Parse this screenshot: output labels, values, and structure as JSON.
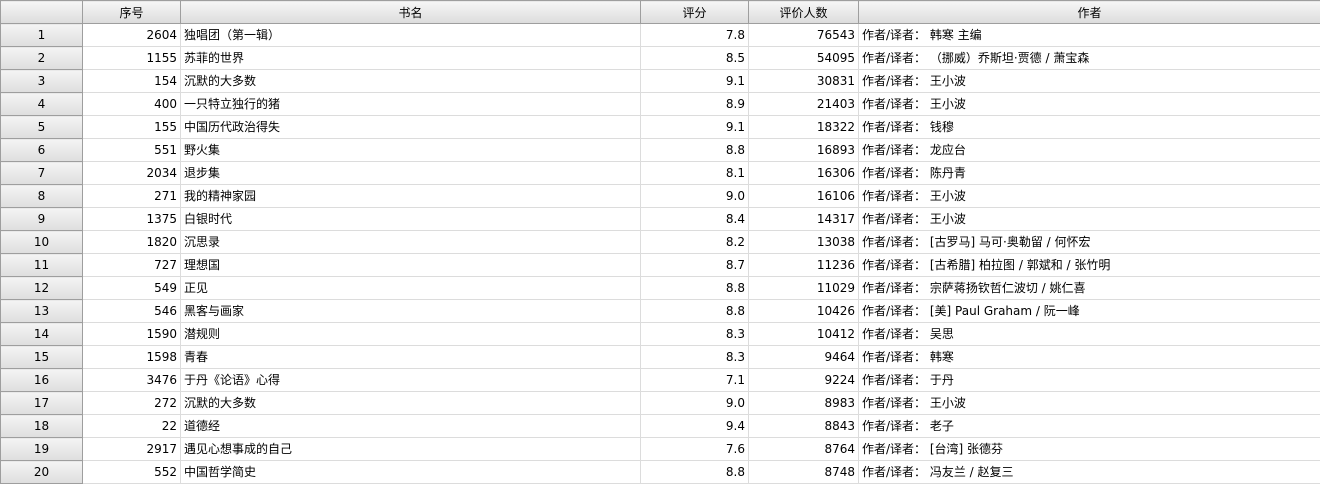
{
  "table": {
    "headers": [
      "",
      "序号",
      "书名",
      "评分",
      "评价人数",
      "作者"
    ],
    "rows": [
      {
        "rn": "1",
        "seq": "2604",
        "title": "独唱团（第一辑）",
        "score": "7.8",
        "count": "76543",
        "author": "作者/译者： 韩寒 主编"
      },
      {
        "rn": "2",
        "seq": "1155",
        "title": "苏菲的世界",
        "score": "8.5",
        "count": "54095",
        "author": "作者/译者： （挪威）乔斯坦·贾德 / 萧宝森"
      },
      {
        "rn": "3",
        "seq": "154",
        "title": "沉默的大多数",
        "score": "9.1",
        "count": "30831",
        "author": "作者/译者： 王小波"
      },
      {
        "rn": "4",
        "seq": "400",
        "title": "一只特立独行的猪",
        "score": "8.9",
        "count": "21403",
        "author": "作者/译者： 王小波"
      },
      {
        "rn": "5",
        "seq": "155",
        "title": "中国历代政治得失",
        "score": "9.1",
        "count": "18322",
        "author": "作者/译者： 钱穆"
      },
      {
        "rn": "6",
        "seq": "551",
        "title": "野火集",
        "score": "8.8",
        "count": "16893",
        "author": "作者/译者： 龙应台"
      },
      {
        "rn": "7",
        "seq": "2034",
        "title": "退步集",
        "score": "8.1",
        "count": "16306",
        "author": "作者/译者： 陈丹青"
      },
      {
        "rn": "8",
        "seq": "271",
        "title": "我的精神家园",
        "score": "9.0",
        "count": "16106",
        "author": "作者/译者： 王小波"
      },
      {
        "rn": "9",
        "seq": "1375",
        "title": "白银时代",
        "score": "8.4",
        "count": "14317",
        "author": "作者/译者： 王小波"
      },
      {
        "rn": "10",
        "seq": "1820",
        "title": "沉思录",
        "score": "8.2",
        "count": "13038",
        "author": "作者/译者： [古罗马] 马可·奥勒留 / 何怀宏"
      },
      {
        "rn": "11",
        "seq": "727",
        "title": "理想国",
        "score": "8.7",
        "count": "11236",
        "author": "作者/译者： [古希腊] 柏拉图 / 郭斌和 / 张竹明"
      },
      {
        "rn": "12",
        "seq": "549",
        "title": "正见",
        "score": "8.8",
        "count": "11029",
        "author": "作者/译者： 宗萨蒋扬钦哲仁波切 / 姚仁喜"
      },
      {
        "rn": "13",
        "seq": "546",
        "title": "黑客与画家",
        "score": "8.8",
        "count": "10426",
        "author": "作者/译者： [美] Paul Graham / 阮一峰"
      },
      {
        "rn": "14",
        "seq": "1590",
        "title": "潜规则",
        "score": "8.3",
        "count": "10412",
        "author": "作者/译者： 吴思"
      },
      {
        "rn": "15",
        "seq": "1598",
        "title": "青春",
        "score": "8.3",
        "count": "9464",
        "author": "作者/译者： 韩寒"
      },
      {
        "rn": "16",
        "seq": "3476",
        "title": "于丹《论语》心得",
        "score": "7.1",
        "count": "9224",
        "author": "作者/译者： 于丹"
      },
      {
        "rn": "17",
        "seq": "272",
        "title": "沉默的大多数",
        "score": "9.0",
        "count": "8983",
        "author": "作者/译者： 王小波"
      },
      {
        "rn": "18",
        "seq": "22",
        "title": "道德经",
        "score": "9.4",
        "count": "8843",
        "author": "作者/译者： 老子"
      },
      {
        "rn": "19",
        "seq": "2917",
        "title": "遇见心想事成的自己",
        "score": "7.6",
        "count": "8764",
        "author": "作者/译者： [台湾] 张德芬"
      },
      {
        "rn": "20",
        "seq": "552",
        "title": "中国哲学简史",
        "score": "8.8",
        "count": "8748",
        "author": "作者/译者： 冯友兰 / 赵复三"
      }
    ]
  }
}
